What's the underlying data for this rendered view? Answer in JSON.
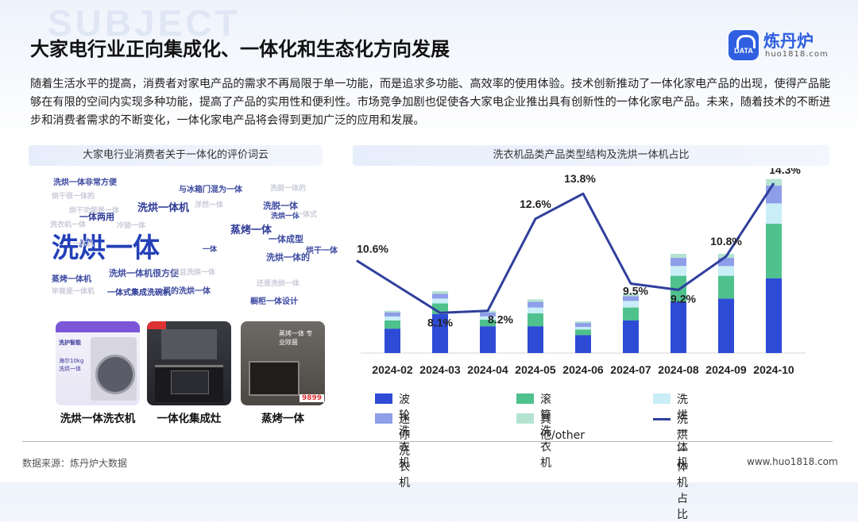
{
  "header": {
    "bg_word": "SUBJECT",
    "title": "大家电行业正向集成化、一体化和生态化方向发展",
    "logo_name": "炼丹炉",
    "logo_badge": "DATA",
    "logo_url": "huo1818.com"
  },
  "intro": "随着生活水平的提高，消费者对家电产品的需求不再局限于单一功能，而是追求多功能、高效率的使用体验。技术创新推动了一体化家电产品的出现，使得产品能够在有限的空间内实现多种功能，提高了产品的实用性和便利性。市场竞争加剧也促使各大家电企业推出具有创新性的一体化家电产品。未来，随着技术的不断进步和消费者需求的不断变化，一体化家电产品将会得到更加广泛的应用和发展。",
  "left_panel": {
    "title": "大家电行业消费者关于一体化的评价词云",
    "words": [
      {
        "text": "洗烘一体非常方便",
        "size": 10,
        "color": "#3d4aa0"
      },
      {
        "text": "烘干很一体的",
        "size": 9,
        "color": "#c9cbd9"
      },
      {
        "text": "与冰箱门混为一体",
        "size": 10,
        "color": "#3d4aa0"
      },
      {
        "text": "洗脱一体的",
        "size": 9,
        "color": "#c9cbd9"
      },
      {
        "text": "烘干功能是一体",
        "size": 9,
        "color": "#c9cbd9"
      },
      {
        "text": "洗衣机一体",
        "size": 9,
        "color": "#c9cbd9"
      },
      {
        "text": "蒸烤一体",
        "size": 13,
        "color": "#2f3b98"
      },
      {
        "text": "洗烘一体机",
        "size": 13,
        "color": "#2f3b98"
      },
      {
        "text": "浮然一体",
        "size": 9,
        "color": "#c9cbd9"
      },
      {
        "text": "洗脱一体",
        "size": 11,
        "color": "#3d4aa0"
      },
      {
        "text": "一体两用",
        "size": 11,
        "color": "#2f3b98"
      },
      {
        "text": "洗烘一体",
        "size": 9,
        "color": "#3d4aa0"
      },
      {
        "text": "一体式",
        "size": 9,
        "color": "#c9cbd9"
      },
      {
        "text": "洗烘一体",
        "size": 34,
        "color": "#2340b8"
      },
      {
        "text": "冷链一体",
        "size": 9,
        "color": "#c9cbd9"
      },
      {
        "text": "一体成型",
        "size": 11,
        "color": "#3d4aa0"
      },
      {
        "text": "一体机",
        "size": 9,
        "color": "#c9cbd9"
      },
      {
        "text": "一体",
        "size": 9,
        "color": "#3d4aa0"
      },
      {
        "text": "烘干一体",
        "size": 10,
        "color": "#3d4aa0"
      },
      {
        "text": "洗烘一体的",
        "size": 11,
        "color": "#3d4aa0"
      },
      {
        "text": "洗烘一体机很方便",
        "size": 11,
        "color": "#3d4aa0"
      },
      {
        "text": "西且洗烘一体",
        "size": 9,
        "color": "#c9cbd9"
      },
      {
        "text": "蒸烤一体机",
        "size": 10,
        "color": "#3d4aa0"
      },
      {
        "text": "还是洗烘一体",
        "size": 9,
        "color": "#c9cbd9"
      },
      {
        "text": "毕竟是一体机",
        "size": 9,
        "color": "#c9cbd9"
      },
      {
        "text": "一体式集成洗碗机",
        "size": 10,
        "color": "#2f3b98"
      },
      {
        "text": "买的洗烘一体",
        "size": 10,
        "color": "#3d4aa0"
      },
      {
        "text": "橱柜一体设计",
        "size": 10,
        "color": "#3d4aa0"
      }
    ],
    "photos": [
      {
        "caption": "洗烘一体洗衣机",
        "tag1": "洗护智能",
        "tag2": "海尔10kg 洗烘一体"
      },
      {
        "caption": "一体化集成灶",
        "tag1": "",
        "tag2": ""
      },
      {
        "caption": "蒸烤一体",
        "tag1": "蒸烤一体 专业除菌",
        "tag2": "9899"
      }
    ]
  },
  "chart_data": {
    "type": "bar",
    "title": "洗衣机品类产品类型结构及洗烘一体机占比",
    "categories": [
      "2024-02",
      "2024-03",
      "2024-04",
      "2024-05",
      "2024-06",
      "2024-07",
      "2024-08",
      "2024-09",
      "2024-10"
    ],
    "series": [
      {
        "name": "波轮洗衣机",
        "color": "#2e4bd6",
        "values": [
          30,
          48,
          33,
          33,
          22,
          40,
          63,
          67,
          92
        ]
      },
      {
        "name": "滚筒洗衣机",
        "color": "#4fc18d",
        "values": [
          10,
          13,
          8,
          16,
          7,
          16,
          32,
          28,
          67
        ]
      },
      {
        "name": "洗烘一体机",
        "color": "#c9eef7",
        "values": [
          5,
          6,
          4,
          7,
          3,
          8,
          12,
          12,
          25
        ]
      },
      {
        "name": "迷你洗衣机",
        "color": "#8e9ee8",
        "values": [
          5,
          6,
          5,
          7,
          5,
          6,
          10,
          10,
          22
        ]
      },
      {
        "name": "其他/other",
        "color": "#b5e3d2",
        "values": [
          2,
          3,
          2,
          3,
          2,
          3,
          5,
          5,
          8
        ]
      }
    ],
    "line": {
      "name": "洗烘一体机占比",
      "color": "#2f3f9c",
      "values": [
        10.6,
        8.1,
        8.2,
        12.6,
        13.8,
        9.5,
        9.2,
        10.8,
        14.3
      ],
      "labels": [
        "10.6%",
        "8.1%",
        "8.2%",
        "12.6%",
        "13.8%",
        "9.5%",
        "9.2%",
        "10.8%",
        "14.3%"
      ]
    }
  },
  "legend": [
    {
      "label": "波轮洗衣机",
      "color": "#2e4bd6"
    },
    {
      "label": "滚筒洗衣机",
      "color": "#4fc18d"
    },
    {
      "label": "洗烘一体机",
      "color": "#c9eef7"
    },
    {
      "label": "迷你洗衣机",
      "color": "#8e9ee8"
    },
    {
      "label": "其他/other",
      "color": "#b5e3d2"
    },
    {
      "label": "洗烘一体机占比",
      "color": "#2f3f9c"
    }
  ],
  "footer": {
    "source": "数据来源：炼丹炉大数据",
    "url": "www.huo1818.com"
  }
}
